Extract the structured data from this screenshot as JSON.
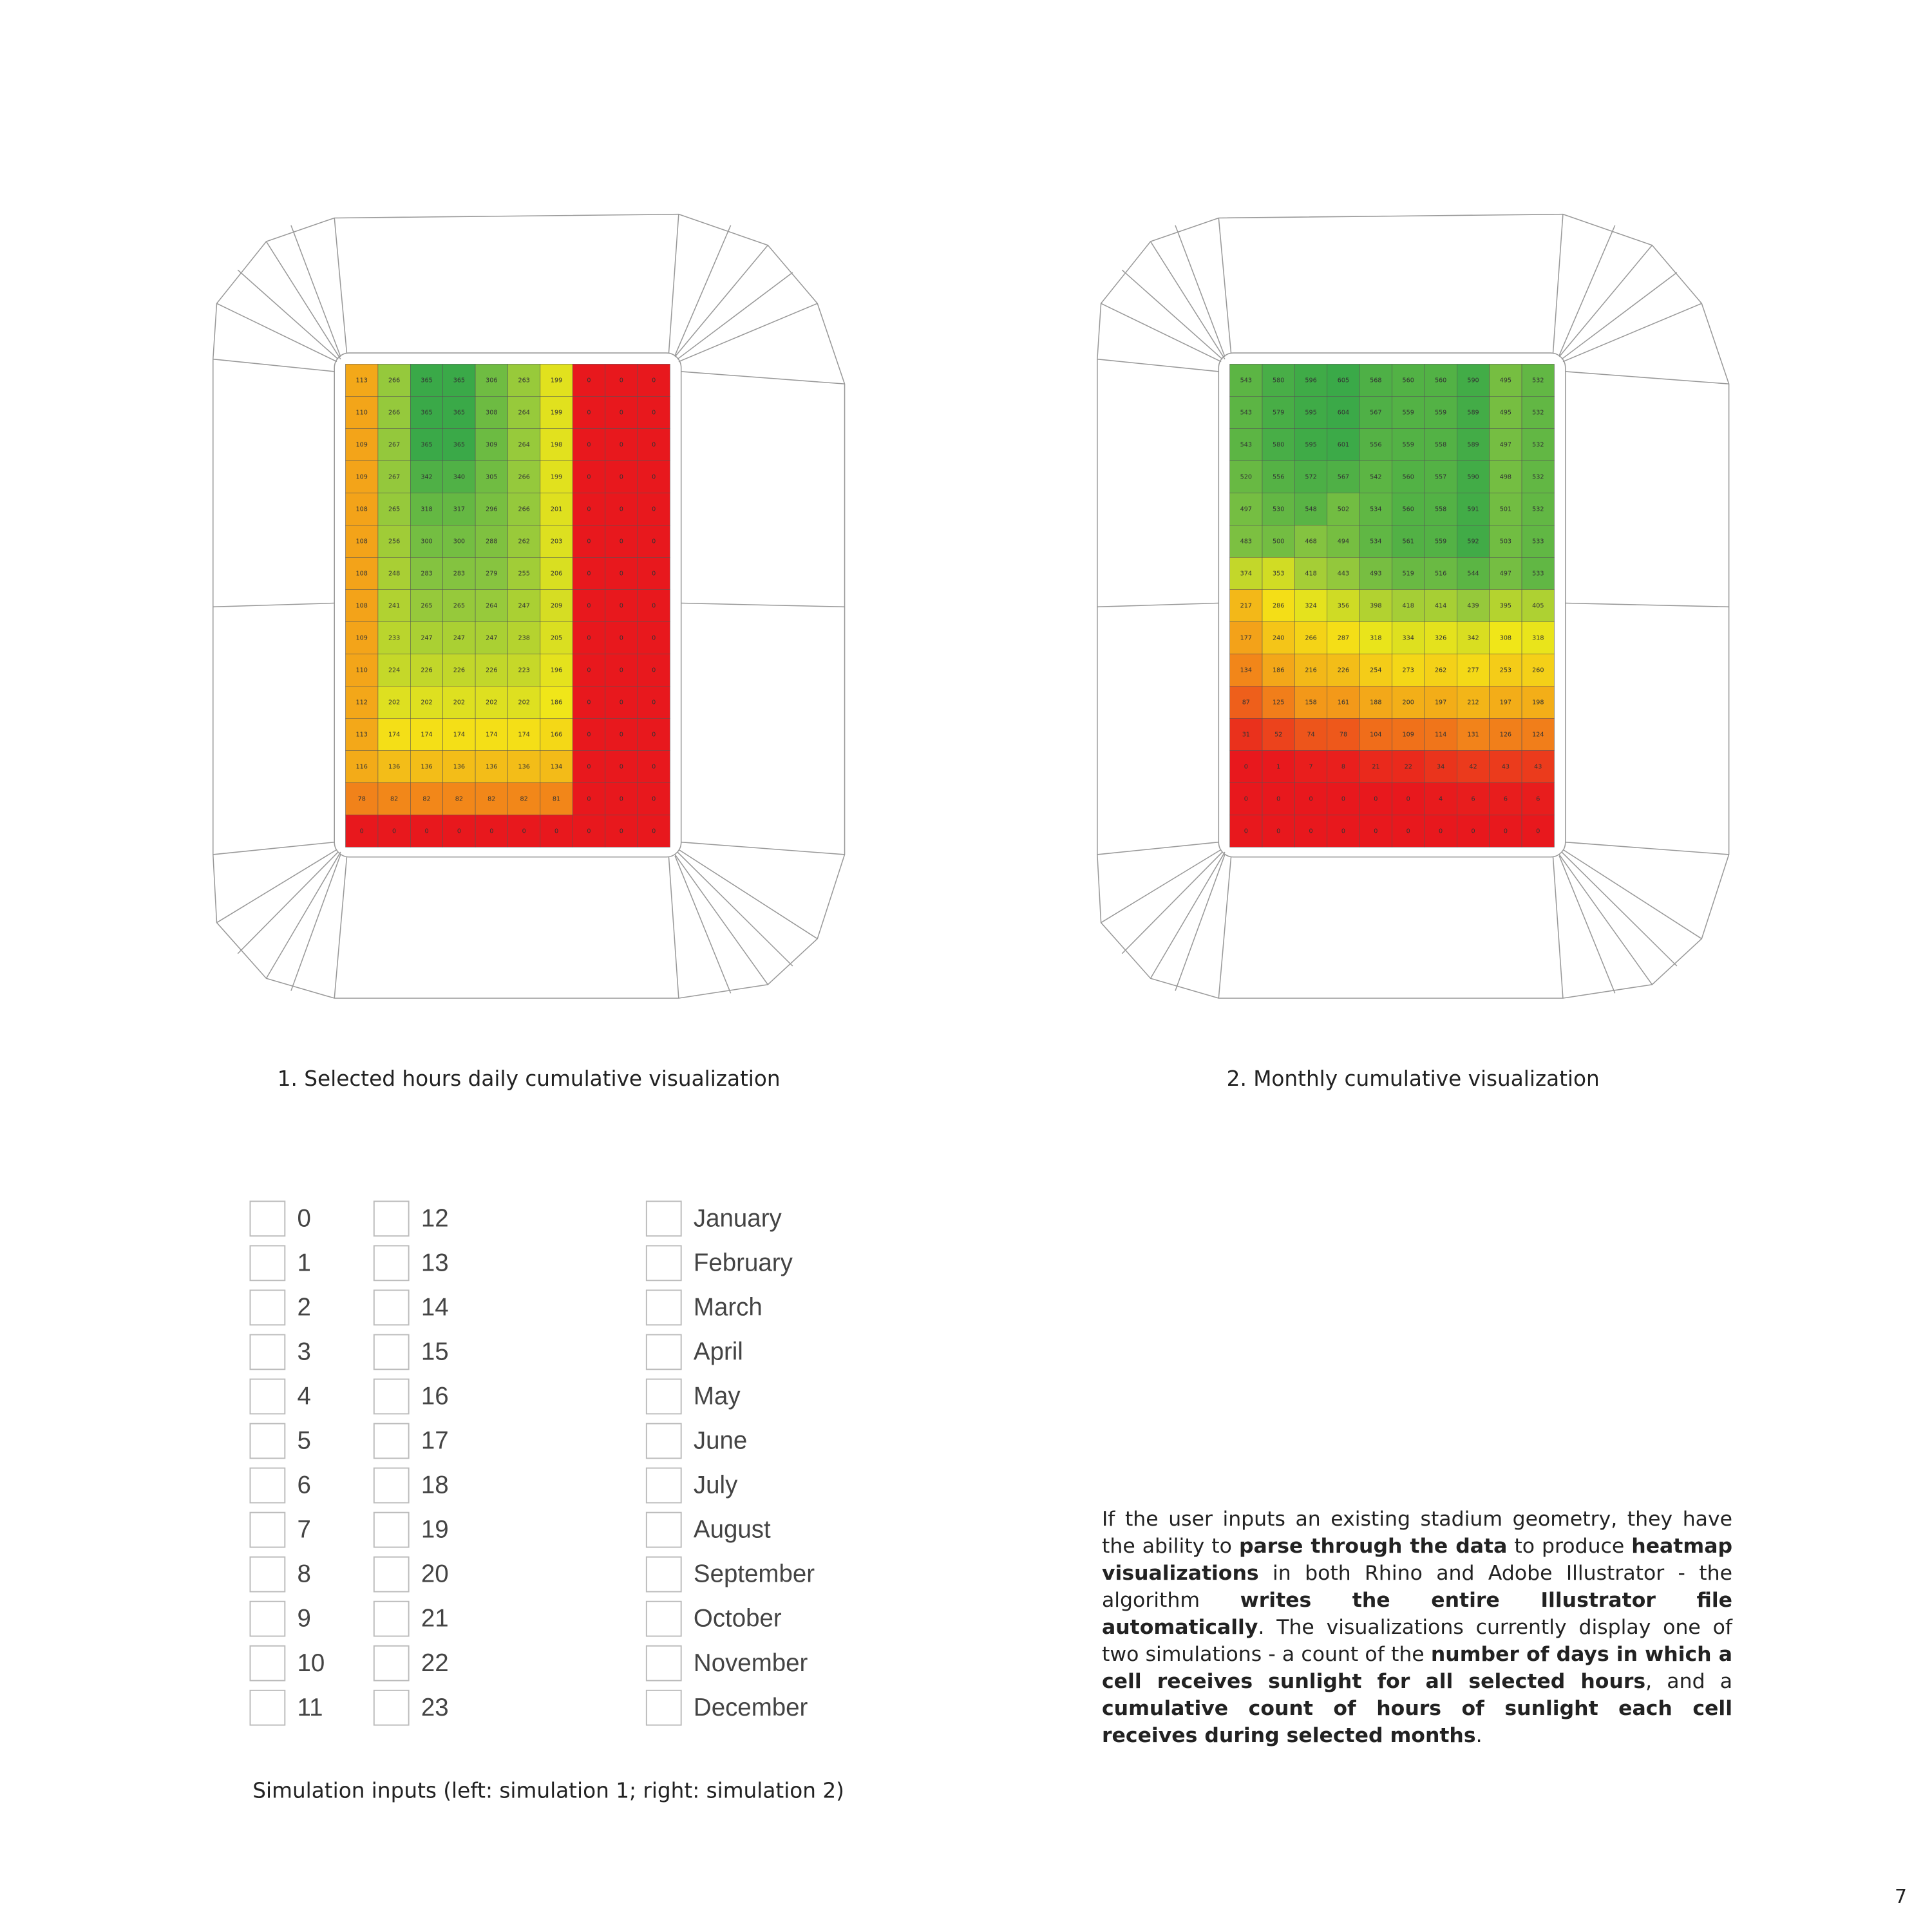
{
  "heatmaps": [
    {
      "caption": "1. Selected hours daily cumulative visualization",
      "colors": [
        "#e8181d",
        "#f39419",
        "#f4e717",
        "#8cc63f",
        "#3aa948"
      ],
      "values": [
        [
          113,
          266,
          365,
          365,
          306,
          263,
          199,
          0,
          0,
          0
        ],
        [
          110,
          266,
          365,
          365,
          308,
          264,
          199,
          0,
          0,
          0
        ],
        [
          109,
          267,
          365,
          365,
          309,
          264,
          198,
          0,
          0,
          0
        ],
        [
          109,
          267,
          342,
          340,
          305,
          266,
          199,
          0,
          0,
          0
        ],
        [
          108,
          265,
          318,
          317,
          296,
          266,
          201,
          0,
          0,
          0
        ],
        [
          108,
          256,
          300,
          300,
          288,
          262,
          203,
          0,
          0,
          0
        ],
        [
          108,
          248,
          283,
          283,
          279,
          255,
          206,
          0,
          0,
          0
        ],
        [
          108,
          241,
          265,
          265,
          264,
          247,
          209,
          0,
          0,
          0
        ],
        [
          109,
          233,
          247,
          247,
          247,
          238,
          205,
          0,
          0,
          0
        ],
        [
          110,
          224,
          226,
          226,
          226,
          223,
          196,
          0,
          0,
          0
        ],
        [
          112,
          202,
          202,
          202,
          202,
          202,
          186,
          0,
          0,
          0
        ],
        [
          113,
          174,
          174,
          174,
          174,
          174,
          166,
          0,
          0,
          0
        ],
        [
          116,
          136,
          136,
          136,
          136,
          136,
          134,
          0,
          0,
          0
        ],
        [
          78,
          82,
          82,
          82,
          82,
          82,
          81,
          0,
          0,
          0
        ],
        [
          0,
          0,
          0,
          0,
          0,
          0,
          0,
          0,
          0,
          0
        ]
      ]
    },
    {
      "caption": "2. Monthly cumulative visualization",
      "colors": [
        "#e8181d",
        "#f39419",
        "#f4e717",
        "#8cc63f",
        "#3aa948"
      ],
      "values": [
        [
          543,
          580,
          596,
          605,
          568,
          560,
          560,
          590,
          495,
          532
        ],
        [
          543,
          579,
          595,
          604,
          567,
          559,
          559,
          589,
          495,
          532
        ],
        [
          543,
          580,
          595,
          601,
          556,
          559,
          558,
          589,
          497,
          532
        ],
        [
          520,
          556,
          572,
          567,
          542,
          560,
          557,
          590,
          498,
          532
        ],
        [
          497,
          530,
          548,
          502,
          534,
          560,
          558,
          591,
          501,
          532
        ],
        [
          483,
          500,
          468,
          494,
          534,
          561,
          559,
          592,
          503,
          533
        ],
        [
          374,
          353,
          418,
          443,
          493,
          519,
          516,
          544,
          497,
          533
        ],
        [
          217,
          286,
          324,
          356,
          398,
          418,
          414,
          439,
          395,
          405
        ],
        [
          177,
          240,
          266,
          287,
          318,
          334,
          326,
          342,
          308,
          318
        ],
        [
          134,
          186,
          216,
          226,
          254,
          273,
          262,
          277,
          253,
          260
        ],
        [
          87,
          125,
          158,
          161,
          188,
          200,
          197,
          212,
          197,
          198
        ],
        [
          31,
          52,
          74,
          78,
          104,
          109,
          114,
          131,
          126,
          124
        ],
        [
          0,
          1,
          7,
          8,
          21,
          22,
          34,
          42,
          43,
          43
        ],
        [
          0,
          0,
          0,
          0,
          0,
          0,
          4,
          6,
          6,
          6
        ],
        [
          0,
          0,
          0,
          0,
          0,
          0,
          0,
          0,
          0,
          0
        ]
      ]
    }
  ],
  "hours": [
    "0",
    "1",
    "2",
    "3",
    "4",
    "5",
    "6",
    "7",
    "8",
    "9",
    "10",
    "11",
    "12",
    "13",
    "14",
    "15",
    "16",
    "17",
    "18",
    "19",
    "20",
    "21",
    "22",
    "23"
  ],
  "months": [
    "January",
    "February",
    "March",
    "April",
    "May",
    "June",
    "July",
    "August",
    "September",
    "October",
    "November",
    "December"
  ],
  "inputs_caption": "Simulation inputs (left: simulation 1; right: simulation 2)",
  "paragraph": [
    {
      "text": "If the user inputs an existing stadium geometry, they have the ability to ",
      "bold": false
    },
    {
      "text": "parse through the data",
      "bold": true
    },
    {
      "text": " to produce ",
      "bold": false
    },
    {
      "text": "heatmap visualizations",
      "bold": true
    },
    {
      "text": " in both Rhino and Adobe Illustrator - the algorithm ",
      "bold": false
    },
    {
      "text": "writes the entire Illustrator file automatically",
      "bold": true
    },
    {
      "text": ". The visualizations currently display one of two simulations - a count of the ",
      "bold": false
    },
    {
      "text": "number of days in which a cell receives sunlight for all selected hours",
      "bold": true
    },
    {
      "text": ", and a ",
      "bold": false
    },
    {
      "text": "cumulative count of hours of sunlight each cell receives during selected months",
      "bold": true
    },
    {
      "text": ".",
      "bold": false
    }
  ],
  "page_number": "7"
}
